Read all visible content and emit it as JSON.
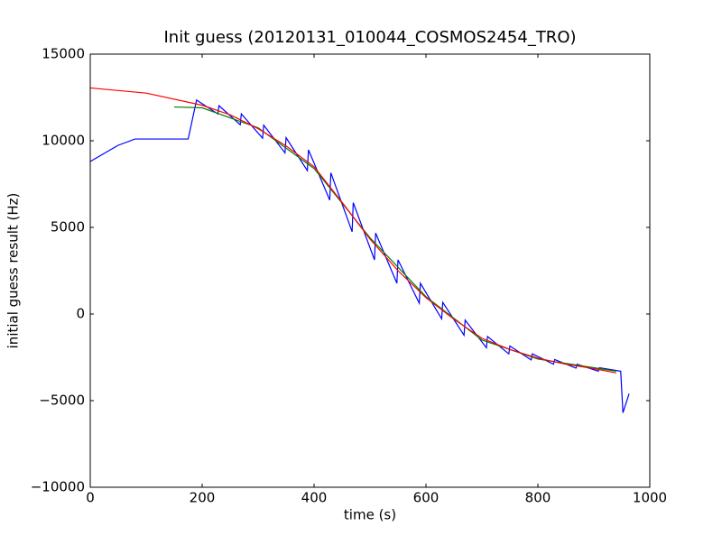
{
  "chart_data": {
    "type": "line",
    "title": "Init guess (20120131_010044_COSMOS2454_TRO)",
    "x_label": "time (s)",
    "y_label": "initial guess result (Hz)",
    "xlim": [
      0,
      1000
    ],
    "xticks": [
      0,
      200,
      400,
      600,
      800,
      1000
    ],
    "ylim": [
      -10000,
      15000
    ],
    "yticks": [
      {
        "value": -10000,
        "label": "−10000"
      },
      {
        "value": -5000,
        "label": "−5000"
      },
      0,
      5000,
      10000,
      15000
    ],
    "series": [
      {
        "color": "#0000ff",
        "x": [
          0,
          50,
          80,
          175,
          190,
          228,
          230,
          268,
          270,
          308,
          310,
          348,
          350,
          388,
          390,
          428,
          430,
          468,
          470,
          508,
          510,
          548,
          550,
          588,
          590,
          628,
          630,
          668,
          670,
          708,
          710,
          748,
          750,
          788,
          790,
          828,
          830,
          868,
          870,
          908,
          910,
          948,
          952,
          963
        ],
        "values": [
          8800,
          9740,
          10100,
          10100,
          12350,
          11550,
          12025,
          10925,
          11550,
          10150,
          10900,
          9300,
          10175,
          8275,
          9475,
          6575,
          8150,
          4750,
          6425,
          3125,
          4675,
          1775,
          3125,
          625,
          1775,
          -275,
          675,
          -1225,
          -350,
          -1950,
          -1300,
          -2300,
          -1850,
          -2650,
          -2300,
          -2900,
          -2625,
          -3125,
          -2900,
          -3300,
          -3100,
          -3300,
          -5700,
          -4600
        ]
      },
      {
        "color": "#008000",
        "x": [
          150,
          200,
          300,
          400,
          500,
          600,
          700,
          800,
          900,
          940
        ],
        "values": [
          11950,
          11900,
          10750,
          8400,
          4400,
          1000,
          -1500,
          -2600,
          -3100,
          -3300
        ]
      },
      {
        "color": "#ff0000",
        "x": [
          0,
          100,
          200,
          250,
          300,
          350,
          400,
          450,
          500,
          550,
          600,
          650,
          700,
          750,
          800,
          850,
          900,
          940
        ],
        "values": [
          13050,
          12750,
          12050,
          11500,
          10700,
          9700,
          8500,
          6450,
          4320,
          2500,
          940,
          -300,
          -1400,
          -2050,
          -2550,
          -2900,
          -3150,
          -3400
        ]
      }
    ]
  }
}
